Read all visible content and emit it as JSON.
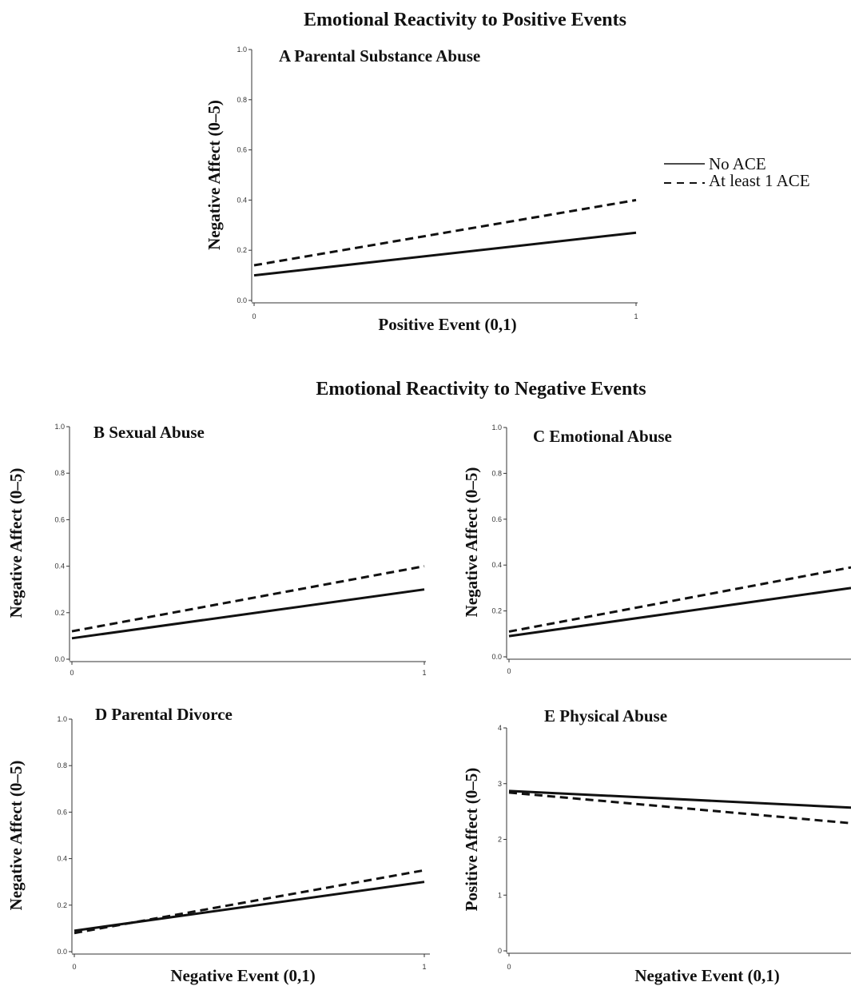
{
  "section_titles": {
    "positive": "Emotional Reactivity to Positive Events",
    "negative": "Emotional Reactivity to Negative Events"
  },
  "legend": {
    "solid_label": "No ACE",
    "dashed_label": "At least 1 ACE"
  },
  "chart_data": [
    {
      "id": "A",
      "type": "line",
      "title": "A Parental Substance Abuse",
      "xlabel": "Positive Event (0,1)",
      "ylabel": "Negative Affect (0–5)",
      "x": [
        0,
        1
      ],
      "xlim": [
        0,
        1
      ],
      "ylim": [
        0,
        1
      ],
      "yticks": [
        "0.0",
        "0.2",
        "0.4",
        "0.6",
        "0.8",
        "1.0"
      ],
      "xticks": [
        "0",
        "1"
      ],
      "series": [
        {
          "name": "No ACE",
          "style": "solid",
          "values": [
            0.1,
            0.27
          ]
        },
        {
          "name": "At least 1 ACE",
          "style": "dashed",
          "values": [
            0.14,
            0.4
          ]
        }
      ]
    },
    {
      "id": "B",
      "type": "line",
      "title": "B Sexual Abuse",
      "xlabel": "",
      "ylabel": "Negative Affect (0–5)",
      "x": [
        0,
        1
      ],
      "xlim": [
        0,
        1
      ],
      "ylim": [
        0,
        1
      ],
      "yticks": [
        "0.0",
        "0.2",
        "0.4",
        "0.6",
        "0.8",
        "1.0"
      ],
      "xticks": [
        "0",
        "1"
      ],
      "series": [
        {
          "name": "No ACE",
          "style": "solid",
          "values": [
            0.09,
            0.3
          ]
        },
        {
          "name": "At least 1 ACE",
          "style": "dashed",
          "values": [
            0.12,
            0.4
          ]
        }
      ]
    },
    {
      "id": "C",
      "type": "line",
      "title": "C Emotional Abuse",
      "xlabel": "",
      "ylabel": "Negative Affect (0–5)",
      "x": [
        0,
        1
      ],
      "xlim": [
        0,
        1
      ],
      "ylim": [
        0,
        1
      ],
      "yticks": [
        "0.0",
        "0.2",
        "0.4",
        "0.6",
        "0.8",
        "1.0"
      ],
      "xticks": [
        "0"
      ],
      "series": [
        {
          "name": "No ACE",
          "style": "solid",
          "values": [
            0.09,
            0.3
          ]
        },
        {
          "name": "At least 1 ACE",
          "style": "dashed",
          "values": [
            0.11,
            0.39
          ]
        }
      ]
    },
    {
      "id": "D",
      "type": "line",
      "title": "D Parental Divorce",
      "xlabel": "Negative Event (0,1)",
      "ylabel": "Negative Affect (0–5)",
      "x": [
        0,
        1
      ],
      "xlim": [
        0,
        1
      ],
      "ylim": [
        0,
        1
      ],
      "yticks": [
        "0.0",
        "0.2",
        "0.4",
        "0.6",
        "0.8",
        "1.0"
      ],
      "xticks": [
        "0",
        "1"
      ],
      "series": [
        {
          "name": "No ACE",
          "style": "solid",
          "values": [
            0.09,
            0.3
          ]
        },
        {
          "name": "At least 1 ACE",
          "style": "dashed",
          "values": [
            0.08,
            0.35
          ]
        }
      ]
    },
    {
      "id": "E",
      "type": "line",
      "title": "E Physical Abuse",
      "xlabel": "Negative Event (0,1)",
      "ylabel": "Positive Affect (0–5)",
      "x": [
        0,
        1
      ],
      "xlim": [
        0,
        1
      ],
      "ylim": [
        0,
        4
      ],
      "yticks": [
        "0",
        "1",
        "2",
        "3",
        "4"
      ],
      "xticks": [
        "0"
      ],
      "series": [
        {
          "name": "No ACE",
          "style": "solid",
          "values": [
            2.87,
            2.57
          ]
        },
        {
          "name": "At least 1 ACE",
          "style": "dashed",
          "values": [
            2.84,
            2.29
          ]
        }
      ]
    }
  ]
}
